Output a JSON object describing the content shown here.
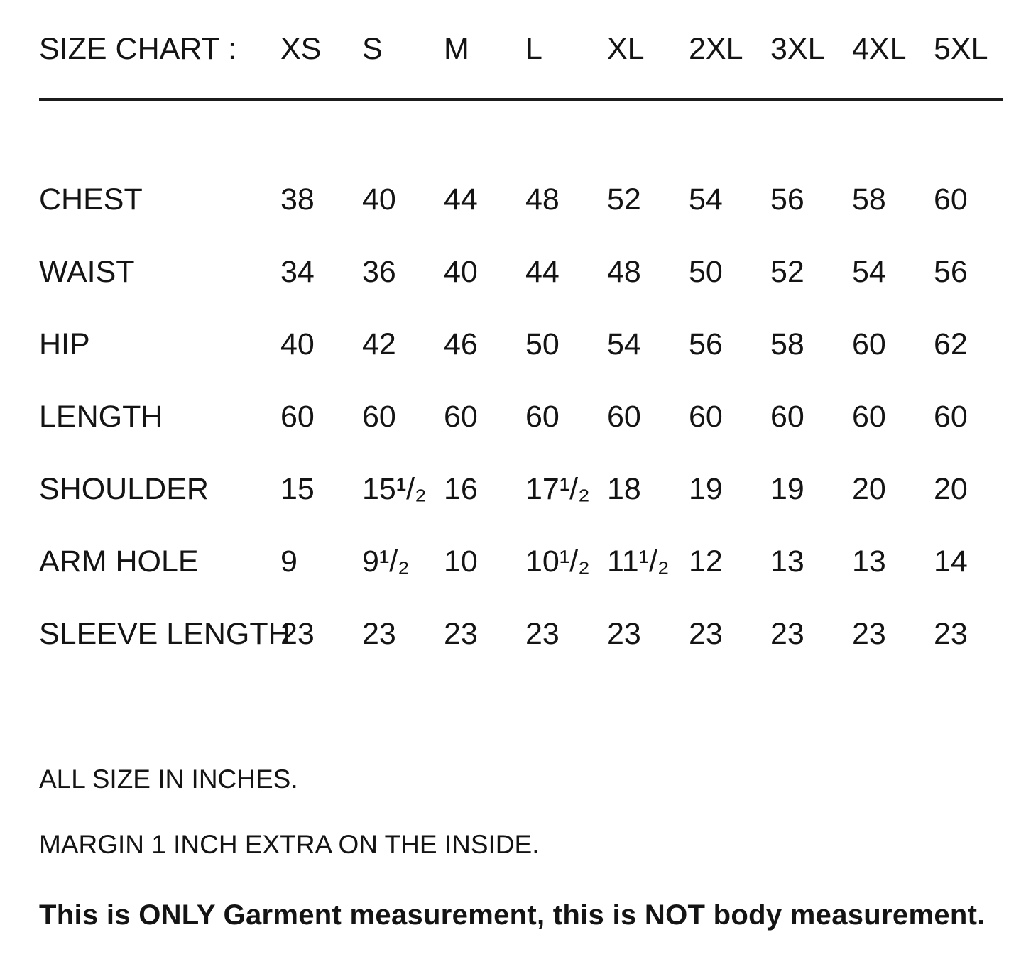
{
  "page": {
    "background_color": "#ffffff",
    "text_color": "#141414"
  },
  "size_chart": {
    "title": "SIZE CHART :",
    "columns": [
      "XS",
      "S",
      "M",
      "L",
      "XL",
      "2XL",
      "3XL",
      "4XL",
      "5XL"
    ],
    "rows": [
      {
        "label": "CHEST",
        "values": [
          "38",
          "40",
          "44",
          "48",
          "52",
          "54",
          "56",
          "58",
          "60"
        ]
      },
      {
        "label": "WAIST",
        "values": [
          "34",
          "36",
          "40",
          "44",
          "48",
          "50",
          "52",
          "54",
          "56"
        ]
      },
      {
        "label": "HIP",
        "values": [
          "40",
          "42",
          "46",
          "50",
          "54",
          "56",
          "58",
          "60",
          "62"
        ]
      },
      {
        "label": "LENGTH",
        "values": [
          "60",
          "60",
          "60",
          "60",
          "60",
          "60",
          "60",
          "60",
          "60"
        ]
      },
      {
        "label": "SHOULDER",
        "values": [
          "15",
          "15¹/₂",
          "16",
          "17¹/₂",
          "18",
          "19",
          "19",
          "20",
          "20"
        ]
      },
      {
        "label": "ARM HOLE",
        "values": [
          "9",
          "9¹/₂",
          "10",
          "10¹/₂",
          "11¹/₂",
          "12",
          "13",
          "13",
          "14"
        ]
      },
      {
        "label": "SLEEVE LENGTH",
        "values": [
          "23",
          "23",
          "23",
          "23",
          "23",
          "23",
          "23",
          "23",
          "23"
        ]
      }
    ]
  },
  "notes": {
    "line1": "ALL SIZE IN INCHES.",
    "line2": "MARGIN 1 INCH EXTRA ON THE INSIDE.",
    "line3": "This is ONLY Garment measurement, this is NOT body measurement."
  },
  "chart_data": {
    "type": "table",
    "title": "SIZE CHART",
    "units": "inches",
    "columns": [
      "XS",
      "S",
      "M",
      "L",
      "XL",
      "2XL",
      "3XL",
      "4XL",
      "5XL"
    ],
    "rows": [
      {
        "label": "CHEST",
        "values": [
          38,
          40,
          44,
          48,
          52,
          54,
          56,
          58,
          60
        ]
      },
      {
        "label": "WAIST",
        "values": [
          34,
          36,
          40,
          44,
          48,
          50,
          52,
          54,
          56
        ]
      },
      {
        "label": "HIP",
        "values": [
          40,
          42,
          46,
          50,
          54,
          56,
          58,
          60,
          62
        ]
      },
      {
        "label": "LENGTH",
        "values": [
          60,
          60,
          60,
          60,
          60,
          60,
          60,
          60,
          60
        ]
      },
      {
        "label": "SHOULDER",
        "values": [
          15,
          15.5,
          16,
          17.5,
          18,
          19,
          19,
          20,
          20
        ]
      },
      {
        "label": "ARM HOLE",
        "values": [
          9,
          9.5,
          10,
          10.5,
          11.5,
          12,
          13,
          13,
          14
        ]
      },
      {
        "label": "SLEEVE LENGTH",
        "values": [
          23,
          23,
          23,
          23,
          23,
          23,
          23,
          23,
          23
        ]
      }
    ],
    "footnotes": [
      "ALL SIZE IN INCHES.",
      "MARGIN 1 INCH EXTRA ON THE INSIDE.",
      "This is ONLY Garment measurement, this is NOT body measurement."
    ]
  }
}
